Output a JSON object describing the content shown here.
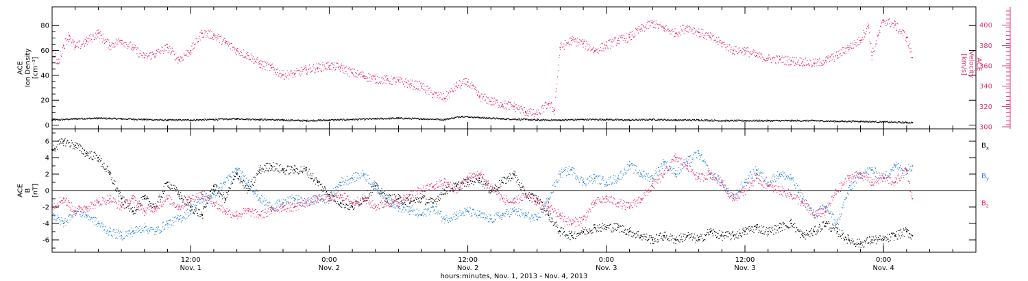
{
  "chart_data": [
    {
      "type": "scatter",
      "panel": "ion-density-velocity",
      "xlabel": "hours:minutes, Nov. 1, 2013 - Nov. 4, 2013",
      "x_ticks": [
        {
          "x": 12,
          "time": "12:00",
          "day": "Nov. 1"
        },
        {
          "x": 24,
          "time": "0:00",
          "day": "Nov. 2"
        },
        {
          "x": 36,
          "time": "12:00",
          "day": "Nov. 2"
        },
        {
          "x": 48,
          "time": "0:00",
          "day": "Nov. 3"
        },
        {
          "x": 60,
          "time": "12:00",
          "day": "Nov. 3"
        },
        {
          "x": 72,
          "time": "0:00",
          "day": "Nov. 4"
        }
      ],
      "xlim": [
        0,
        80
      ],
      "left_axis": {
        "label_lines": [
          "ACE",
          "Ion Density",
          "[cm⁻³]"
        ],
        "ticks": [
          "0",
          "20",
          "40",
          "60",
          "80"
        ],
        "tick_values": [
          0,
          20,
          40,
          60,
          80
        ],
        "ylim": [
          -3,
          95
        ],
        "color": "#000000"
      },
      "right_axis": {
        "label_lines": [
          "ACE",
          "Velocity",
          "[km/s]"
        ],
        "ticks": [
          "300",
          "320",
          "340",
          "360",
          "380",
          "400"
        ],
        "tick_values": [
          300,
          320,
          340,
          360,
          380,
          400
        ],
        "ylim": [
          298,
          418
        ],
        "color": "#e8336b"
      },
      "series": [
        {
          "color": "#000000",
          "axis": "left",
          "x": [
            0,
            2,
            4,
            6,
            8,
            10,
            12,
            14,
            16,
            18,
            20,
            22,
            24,
            26,
            28,
            30,
            32,
            34,
            35.5,
            37,
            39,
            41,
            42,
            44,
            46,
            48,
            50,
            52,
            54,
            56,
            58,
            60,
            62,
            64,
            66,
            68,
            70,
            72,
            74,
            74.5
          ],
          "y": [
            4,
            5,
            5.5,
            5,
            4.5,
            4,
            4,
            4.5,
            5,
            4.5,
            4,
            3.5,
            4,
            4.5,
            5,
            5.5,
            5,
            4.5,
            7,
            6,
            5,
            4.5,
            4,
            4,
            4.5,
            4.5,
            4,
            4.5,
            4,
            4,
            3.5,
            3.5,
            3.5,
            3.5,
            3.5,
            3,
            3,
            2.5,
            2,
            2
          ]
        },
        {
          "color": "#e8336b",
          "axis": "right",
          "x": [
            0,
            0.5,
            1,
            1.5,
            2,
            3,
            4,
            5,
            6,
            7,
            8,
            9,
            10,
            11,
            12,
            13,
            14,
            15,
            16,
            17,
            18,
            19,
            20,
            21,
            22,
            23,
            24,
            25,
            26,
            27,
            28,
            29,
            30,
            31,
            32,
            33,
            34,
            35,
            36,
            37,
            38,
            39,
            40,
            41,
            42,
            43,
            43.5,
            44,
            45,
            46,
            47,
            48,
            49,
            50,
            51,
            52,
            53,
            54,
            55,
            56,
            57,
            58,
            59,
            60,
            61,
            62,
            63,
            64,
            65,
            66,
            67,
            68,
            69,
            70,
            70.7,
            71,
            72,
            73,
            74,
            74.5
          ],
          "y": [
            375,
            362,
            380,
            390,
            378,
            384,
            392,
            380,
            385,
            378,
            368,
            372,
            378,
            366,
            375,
            392,
            390,
            383,
            375,
            370,
            362,
            358,
            351,
            352,
            356,
            358,
            360,
            358,
            353,
            350,
            347,
            346,
            345,
            342,
            340,
            332,
            328,
            340,
            344,
            330,
            325,
            322,
            320,
            315,
            312,
            323,
            316,
            378,
            385,
            382,
            375,
            380,
            385,
            388,
            396,
            402,
            397,
            392,
            398,
            393,
            388,
            382,
            375,
            375,
            370,
            367,
            366,
            365,
            364,
            362,
            365,
            370,
            378,
            385,
            400,
            370,
            405,
            400,
            388,
            368
          ]
        }
      ]
    },
    {
      "type": "scatter",
      "panel": "magnetic-field",
      "xlim": [
        0,
        80
      ],
      "ylim": [
        -7.5,
        7.5
      ],
      "y_axis": {
        "label_lines": [
          "ACE",
          "B",
          "[nT]"
        ],
        "ticks": [
          "6",
          "4",
          "2",
          "0",
          "-2",
          "-4",
          "-6"
        ],
        "tick_values": [
          6,
          4,
          2,
          0,
          -2,
          -4,
          -6
        ]
      },
      "zero_line": 0,
      "series": [
        {
          "name_base": "B",
          "name_sub": "x",
          "color": "#000000",
          "x": [
            0,
            1,
            2,
            3,
            4,
            5,
            6,
            7,
            8,
            9,
            10,
            11,
            12,
            13,
            14,
            15,
            16,
            17,
            18,
            19,
            20,
            21,
            22,
            23,
            24,
            25,
            26,
            27,
            28,
            29,
            30,
            31,
            32,
            33,
            34,
            35,
            36,
            37,
            38,
            39,
            40,
            41,
            42,
            43,
            44,
            45,
            46,
            47,
            48,
            49,
            50,
            51,
            52,
            53,
            54,
            55,
            56,
            57,
            58,
            59,
            60,
            61,
            62,
            63,
            64,
            65,
            66,
            67,
            68,
            69,
            70,
            71,
            72,
            73,
            74,
            74.5
          ],
          "y": [
            5,
            6,
            5.5,
            4.5,
            4,
            2,
            -1,
            -2.5,
            -1,
            -2,
            1,
            -0.5,
            -2,
            -3,
            0.5,
            -1,
            2,
            0,
            2.5,
            3,
            2.5,
            2.5,
            2.5,
            1,
            -0.5,
            -1.5,
            -2,
            -1,
            0.5,
            -1,
            -1,
            -1.5,
            -1,
            -1.5,
            0,
            0.5,
            1,
            1.5,
            0,
            1,
            2,
            -0.5,
            -1,
            -3,
            -5,
            -5.5,
            -5,
            -4.5,
            -4.5,
            -4.5,
            -5,
            -5.5,
            -6,
            -5.5,
            -6,
            -5.5,
            -6,
            -5,
            -5.5,
            -5.5,
            -5,
            -4.5,
            -5,
            -4.5,
            -4,
            -5.5,
            -5,
            -4,
            -5,
            -6,
            -6.5,
            -6,
            -6,
            -5.5,
            -5,
            -5.5
          ]
        },
        {
          "name_base": "B",
          "name_sub": "y",
          "color": "#2f86d8",
          "x": [
            0,
            1,
            2,
            3,
            4,
            5,
            6,
            7,
            8,
            9,
            10,
            11,
            12,
            13,
            14,
            15,
            16,
            17,
            18,
            19,
            20,
            21,
            22,
            23,
            24,
            25,
            26,
            27,
            28,
            29,
            30,
            31,
            32,
            33,
            34,
            35,
            36,
            37,
            38,
            39,
            40,
            41,
            42,
            43,
            44,
            45,
            46,
            47,
            48,
            49,
            50,
            51,
            52,
            53,
            54,
            55,
            56,
            57,
            58,
            59,
            60,
            61,
            62,
            63,
            64,
            65,
            66,
            67,
            68,
            69,
            70,
            71,
            72,
            73,
            74,
            74.5
          ],
          "y": [
            -3,
            -4,
            -2.5,
            -3,
            -4,
            -5,
            -5.5,
            -5,
            -4.5,
            -5,
            -4,
            -3.5,
            -2.5,
            -1,
            -0.5,
            1,
            2.5,
            1,
            -1,
            -2,
            -1.5,
            -1,
            -1.5,
            -1,
            -1,
            1,
            1.5,
            2,
            0.5,
            -1,
            -2,
            -2.5,
            -3,
            -2,
            -3.5,
            -3,
            -2.5,
            -3,
            -3.5,
            -3,
            -2.5,
            -3,
            -3.5,
            -1,
            2,
            2.5,
            1,
            1.5,
            1,
            1.5,
            3,
            2,
            1.5,
            3.5,
            2,
            3.5,
            4.5,
            2,
            1,
            -1,
            1,
            2.5,
            1,
            2,
            1.5,
            -1,
            -3,
            -2,
            -4,
            0,
            2,
            2.5,
            1.5,
            3,
            2.5,
            3
          ]
        },
        {
          "name_base": "B",
          "name_sub": "z",
          "color": "#e8336b",
          "x": [
            0,
            1,
            2,
            3,
            4,
            5,
            6,
            7,
            8,
            9,
            10,
            11,
            12,
            13,
            14,
            15,
            16,
            17,
            18,
            19,
            20,
            21,
            22,
            23,
            24,
            25,
            26,
            27,
            28,
            29,
            30,
            31,
            32,
            33,
            34,
            35,
            36,
            37,
            38,
            39,
            40,
            41,
            42,
            43,
            44,
            45,
            46,
            47,
            48,
            49,
            50,
            51,
            52,
            53,
            54,
            55,
            56,
            57,
            58,
            59,
            60,
            61,
            62,
            63,
            64,
            65,
            66,
            67,
            68,
            69,
            70,
            71,
            72,
            73,
            74,
            74.5
          ],
          "y": [
            -2,
            -1,
            -2.5,
            -2,
            -1.5,
            -1,
            -2,
            -1,
            -2.5,
            -2,
            -1,
            -2,
            -1,
            -0.5,
            -1.5,
            -2.5,
            -3,
            -2.5,
            -3,
            -2.5,
            -2,
            -2,
            -1.5,
            -1,
            -1,
            -0.5,
            -1.5,
            -1,
            -2,
            -1.5,
            -1.5,
            -0.5,
            0,
            0.5,
            1,
            0,
            1.5,
            2,
            0.5,
            -1,
            -1.5,
            -0.5,
            -1.5,
            -2,
            -3,
            -4,
            -3.5,
            -1.5,
            -1,
            -1.5,
            -2,
            -1,
            0.5,
            2,
            4,
            3,
            1.5,
            2,
            1,
            -1,
            0,
            1.5,
            0.5,
            0,
            -0.5,
            -1.5,
            -3,
            -2.5,
            0,
            1.5,
            2,
            1,
            1.5,
            1,
            2.5,
            -1
          ]
        }
      ]
    }
  ]
}
